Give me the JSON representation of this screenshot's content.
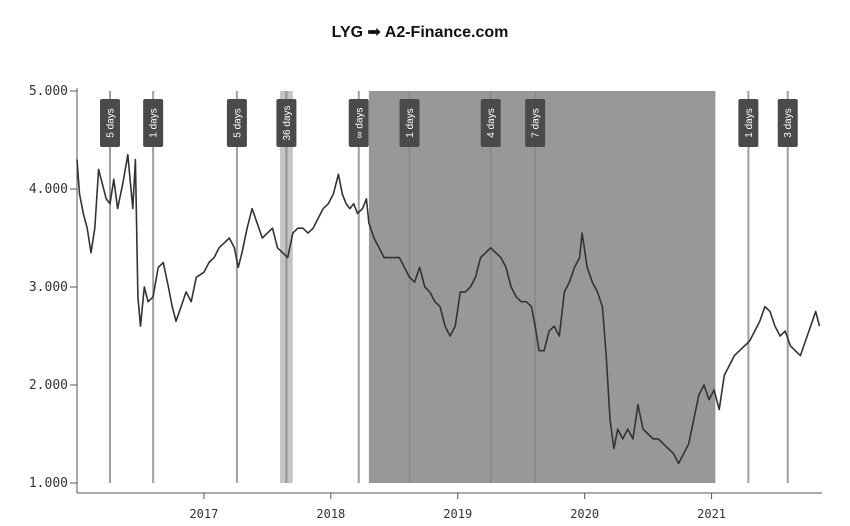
{
  "chart_data": {
    "type": "line",
    "title": "LYG ➟ A2-Finance.com",
    "xlabel": "",
    "ylabel": "",
    "xlim": [
      2016.0,
      2021.87
    ],
    "ylim": [
      1.0,
      5.0
    ],
    "grid": false,
    "y_ticks": [
      "1.000",
      "2.000",
      "3.000",
      "4.000",
      "5.000"
    ],
    "x_ticks": [
      "2017",
      "2018",
      "2019",
      "2020",
      "2021"
    ],
    "line_color": "#333333",
    "shaded_regions": [
      {
        "start": 2017.6,
        "end": 2017.7,
        "color": "#c4c4c4"
      },
      {
        "start": 2018.3,
        "end": 2021.03,
        "color": "#989898"
      }
    ],
    "markers": [
      {
        "label": "5 days",
        "x": 2016.26
      },
      {
        "label": "1 days",
        "x": 2016.6
      },
      {
        "label": "5 days",
        "x": 2017.26
      },
      {
        "label": "36 days",
        "x": 2017.65
      },
      {
        "label": "∞ days",
        "x": 2018.22
      },
      {
        "label": "1 days",
        "x": 2018.62
      },
      {
        "label": "4 days",
        "x": 2019.26
      },
      {
        "label": "7 days",
        "x": 2019.61
      },
      {
        "label": "1 days",
        "x": 2021.29
      },
      {
        "label": "3 days",
        "x": 2021.6
      }
    ],
    "series": [
      {
        "values": [
          [
            2016.0,
            4.3
          ],
          [
            2016.02,
            3.95
          ],
          [
            2016.05,
            3.75
          ],
          [
            2016.08,
            3.6
          ],
          [
            2016.11,
            3.35
          ],
          [
            2016.14,
            3.6
          ],
          [
            2016.17,
            4.2
          ],
          [
            2016.2,
            4.05
          ],
          [
            2016.23,
            3.9
          ],
          [
            2016.26,
            3.85
          ],
          [
            2016.29,
            4.1
          ],
          [
            2016.32,
            3.8
          ],
          [
            2016.36,
            4.05
          ],
          [
            2016.4,
            4.35
          ],
          [
            2016.44,
            3.8
          ],
          [
            2016.46,
            4.3
          ],
          [
            2016.48,
            2.9
          ],
          [
            2016.5,
            2.6
          ],
          [
            2016.53,
            3.0
          ],
          [
            2016.56,
            2.85
          ],
          [
            2016.6,
            2.9
          ],
          [
            2016.64,
            3.2
          ],
          [
            2016.68,
            3.25
          ],
          [
            2016.72,
            3.0
          ],
          [
            2016.75,
            2.8
          ],
          [
            2016.78,
            2.65
          ],
          [
            2016.82,
            2.8
          ],
          [
            2016.86,
            2.95
          ],
          [
            2016.9,
            2.85
          ],
          [
            2016.94,
            3.1
          ],
          [
            2017.0,
            3.15
          ],
          [
            2017.04,
            3.25
          ],
          [
            2017.08,
            3.3
          ],
          [
            2017.12,
            3.4
          ],
          [
            2017.16,
            3.45
          ],
          [
            2017.2,
            3.5
          ],
          [
            2017.24,
            3.4
          ],
          [
            2017.27,
            3.2
          ],
          [
            2017.3,
            3.35
          ],
          [
            2017.34,
            3.6
          ],
          [
            2017.38,
            3.8
          ],
          [
            2017.42,
            3.65
          ],
          [
            2017.46,
            3.5
          ],
          [
            2017.5,
            3.55
          ],
          [
            2017.54,
            3.6
          ],
          [
            2017.58,
            3.4
          ],
          [
            2017.62,
            3.35
          ],
          [
            2017.66,
            3.3
          ],
          [
            2017.7,
            3.55
          ],
          [
            2017.74,
            3.6
          ],
          [
            2017.78,
            3.6
          ],
          [
            2017.82,
            3.55
          ],
          [
            2017.86,
            3.6
          ],
          [
            2017.9,
            3.7
          ],
          [
            2017.94,
            3.8
          ],
          [
            2017.98,
            3.85
          ],
          [
            2018.02,
            3.95
          ],
          [
            2018.06,
            4.15
          ],
          [
            2018.09,
            3.95
          ],
          [
            2018.12,
            3.85
          ],
          [
            2018.15,
            3.8
          ],
          [
            2018.18,
            3.85
          ],
          [
            2018.21,
            3.75
          ],
          [
            2018.25,
            3.8
          ],
          [
            2018.28,
            3.9
          ],
          [
            2018.3,
            3.65
          ],
          [
            2018.34,
            3.5
          ],
          [
            2018.38,
            3.4
          ],
          [
            2018.42,
            3.3
          ],
          [
            2018.46,
            3.3
          ],
          [
            2018.5,
            3.3
          ],
          [
            2018.54,
            3.3
          ],
          [
            2018.58,
            3.2
          ],
          [
            2018.62,
            3.1
          ],
          [
            2018.66,
            3.05
          ],
          [
            2018.7,
            3.2
          ],
          [
            2018.74,
            3.0
          ],
          [
            2018.78,
            2.95
          ],
          [
            2018.82,
            2.85
          ],
          [
            2018.86,
            2.8
          ],
          [
            2018.9,
            2.6
          ],
          [
            2018.94,
            2.5
          ],
          [
            2018.98,
            2.6
          ],
          [
            2019.02,
            2.95
          ],
          [
            2019.06,
            2.95
          ],
          [
            2019.1,
            3.0
          ],
          [
            2019.14,
            3.1
          ],
          [
            2019.18,
            3.3
          ],
          [
            2019.22,
            3.35
          ],
          [
            2019.26,
            3.4
          ],
          [
            2019.3,
            3.35
          ],
          [
            2019.34,
            3.3
          ],
          [
            2019.38,
            3.2
          ],
          [
            2019.42,
            3.0
          ],
          [
            2019.46,
            2.9
          ],
          [
            2019.5,
            2.85
          ],
          [
            2019.54,
            2.85
          ],
          [
            2019.58,
            2.8
          ],
          [
            2019.61,
            2.6
          ],
          [
            2019.64,
            2.35
          ],
          [
            2019.68,
            2.35
          ],
          [
            2019.72,
            2.55
          ],
          [
            2019.76,
            2.6
          ],
          [
            2019.8,
            2.5
          ],
          [
            2019.84,
            2.95
          ],
          [
            2019.88,
            3.05
          ],
          [
            2019.92,
            3.2
          ],
          [
            2019.96,
            3.3
          ],
          [
            2019.98,
            3.55
          ],
          [
            2020.02,
            3.2
          ],
          [
            2020.06,
            3.05
          ],
          [
            2020.1,
            2.95
          ],
          [
            2020.14,
            2.8
          ],
          [
            2020.17,
            2.3
          ],
          [
            2020.2,
            1.65
          ],
          [
            2020.23,
            1.35
          ],
          [
            2020.26,
            1.55
          ],
          [
            2020.3,
            1.45
          ],
          [
            2020.34,
            1.55
          ],
          [
            2020.38,
            1.45
          ],
          [
            2020.42,
            1.8
          ],
          [
            2020.46,
            1.55
          ],
          [
            2020.5,
            1.5
          ],
          [
            2020.54,
            1.45
          ],
          [
            2020.58,
            1.45
          ],
          [
            2020.62,
            1.4
          ],
          [
            2020.66,
            1.35
          ],
          [
            2020.7,
            1.3
          ],
          [
            2020.74,
            1.2
          ],
          [
            2020.78,
            1.3
          ],
          [
            2020.82,
            1.4
          ],
          [
            2020.86,
            1.65
          ],
          [
            2020.9,
            1.9
          ],
          [
            2020.94,
            2.0
          ],
          [
            2020.98,
            1.85
          ],
          [
            2021.02,
            1.95
          ],
          [
            2021.06,
            1.75
          ],
          [
            2021.1,
            2.1
          ],
          [
            2021.14,
            2.2
          ],
          [
            2021.18,
            2.3
          ],
          [
            2021.22,
            2.35
          ],
          [
            2021.26,
            2.4
          ],
          [
            2021.3,
            2.45
          ],
          [
            2021.34,
            2.55
          ],
          [
            2021.38,
            2.65
          ],
          [
            2021.42,
            2.8
          ],
          [
            2021.46,
            2.75
          ],
          [
            2021.5,
            2.6
          ],
          [
            2021.54,
            2.5
          ],
          [
            2021.58,
            2.55
          ],
          [
            2021.62,
            2.4
          ],
          [
            2021.66,
            2.35
          ],
          [
            2021.7,
            2.3
          ],
          [
            2021.74,
            2.45
          ],
          [
            2021.78,
            2.6
          ],
          [
            2021.82,
            2.75
          ],
          [
            2021.85,
            2.6
          ]
        ]
      }
    ]
  }
}
